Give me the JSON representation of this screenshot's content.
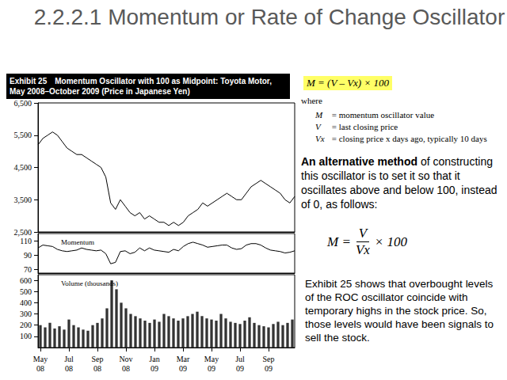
{
  "slide": {
    "title": "2.2.2.1 Momentum or Rate of Change Oscillator",
    "exhibit_label": "Exhibit 25",
    "exhibit_title": "Momentum Oscillator with 100 as Midpoint: Toyota Motor, May 2008–October 2009 (Price in Japanese Yen)",
    "formula1": "M = (V – Vx) × 100",
    "where": "where",
    "definitions": [
      {
        "symbol": "M",
        "text": "= momentum oscillator value"
      },
      {
        "symbol": "V",
        "text": "= last closing price"
      },
      {
        "symbol": "Vx",
        "text": "= closing price x days ago, typically 10 days"
      }
    ],
    "paragraph1": {
      "bold": "An alternative method",
      "text": " of constructing this oscillator is to set it so that it oscillates above and below 100, instead of 0, as follows:"
    },
    "formula2": {
      "lhs": "M =",
      "numerator": "V",
      "denominator": "Vx",
      "factor": "× 100"
    },
    "paragraph2": "Exhibit 25 shows that overbought levels of the ROC oscillator coincide with temporary highs in the stock price. So, those levels would have been signals to sell the stock."
  },
  "chart_data": [
    {
      "type": "line",
      "x": [
        null,
        null,
        null,
        null,
        null,
        null,
        null,
        null,
        null,
        null,
        null,
        null,
        null,
        null,
        null,
        null,
        null,
        null,
        null,
        null,
        null,
        null,
        null,
        null,
        null,
        null,
        null,
        null,
        null,
        null,
        null,
        null,
        null,
        null,
        null,
        null,
        null,
        null,
        null,
        null,
        null,
        null,
        null,
        null,
        null,
        null,
        null,
        null,
        null,
        null,
        null,
        null,
        null,
        null
      ],
      "values": [
        5200,
        5400,
        5500,
        5600,
        5500,
        5300,
        5100,
        5000,
        4900,
        4900,
        4800,
        4700,
        4600,
        4500,
        4200,
        3400,
        3200,
        3500,
        3300,
        3100,
        3000,
        3100,
        2900,
        3000,
        2900,
        2800,
        2800,
        2700,
        2800,
        2700,
        2800,
        3000,
        3100,
        3200,
        3400,
        3300,
        3400,
        3500,
        3600,
        3700,
        3600,
        3500,
        3500,
        3700,
        3900,
        4000,
        4100,
        4000,
        3900,
        3800,
        3700,
        3500,
        3400,
        3600
      ],
      "color": "#000000",
      "marker": "none",
      "ylim": [
        2500,
        6500
      ],
      "yticks": [
        {
          "value": 2500,
          "label": "2,500"
        },
        {
          "value": 3500,
          "label": "3,500"
        },
        {
          "value": 4500,
          "label": "4,500"
        },
        {
          "value": 5500,
          "label": "5,500"
        },
        {
          "value": 6500,
          "label": "6,500"
        }
      ],
      "grid": false,
      "tick_labels": "y"
    },
    {
      "type": "line",
      "title": "Momentum",
      "x": [
        null,
        null,
        null,
        null,
        null,
        null,
        null,
        null,
        null,
        null,
        null,
        null,
        null,
        null,
        null,
        null,
        null,
        null,
        null,
        null,
        null,
        null,
        null,
        null,
        null,
        null,
        null,
        null,
        null,
        null,
        null,
        null,
        null,
        null,
        null,
        null,
        null,
        null,
        null,
        null,
        null,
        null,
        null,
        null,
        null,
        null,
        null,
        null,
        null,
        null,
        null,
        null,
        null,
        null
      ],
      "values": [
        100,
        104,
        103,
        102,
        98,
        96,
        95,
        96,
        97,
        100,
        98,
        97,
        96,
        97,
        92,
        78,
        80,
        95,
        96,
        92,
        94,
        100,
        96,
        100,
        97,
        96,
        95,
        94,
        98,
        96,
        102,
        106,
        108,
        106,
        104,
        101,
        102,
        103,
        104,
        104,
        100,
        98,
        99,
        104,
        106,
        106,
        104,
        100,
        97,
        96,
        95,
        93,
        94,
        96
      ],
      "color": "#000000",
      "marker": "none",
      "ylim": [
        65,
        120
      ],
      "yticks": [
        70,
        90,
        110
      ],
      "grid": false,
      "tick_labels": "y"
    },
    {
      "type": "bar",
      "title": "Volume (thousands)",
      "x": [
        "May 08",
        null,
        null,
        null,
        null,
        null,
        "Jul 08",
        null,
        null,
        null,
        null,
        null,
        "Sep 08",
        null,
        null,
        null,
        null,
        null,
        "Nov 08",
        null,
        null,
        null,
        null,
        null,
        "Jan 09",
        null,
        null,
        null,
        null,
        null,
        "Mar 09",
        null,
        null,
        null,
        null,
        null,
        "May 09",
        null,
        null,
        null,
        null,
        null,
        "Jul 09",
        null,
        null,
        null,
        null,
        null,
        "Sep 09",
        null,
        null,
        null,
        null,
        null
      ],
      "values": [
        200,
        180,
        220,
        170,
        190,
        160,
        250,
        200,
        180,
        160,
        150,
        200,
        220,
        260,
        350,
        600,
        520,
        400,
        350,
        300,
        280,
        260,
        240,
        220,
        250,
        230,
        300,
        280,
        260,
        240,
        260,
        280,
        300,
        320,
        280,
        260,
        250,
        240,
        300,
        260,
        230,
        220,
        210,
        240,
        270,
        220,
        200,
        190,
        180,
        210,
        230,
        200,
        220,
        250
      ],
      "color": "#333333",
      "ylim": [
        0,
        650
      ],
      "yticks": [
        100,
        200,
        300,
        400,
        500,
        600
      ],
      "grid": false
    }
  ]
}
